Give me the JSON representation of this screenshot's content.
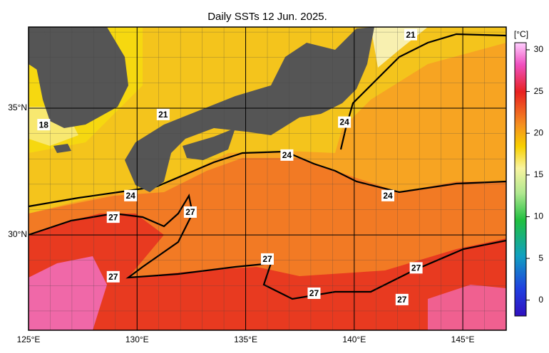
{
  "map": {
    "title": "Daily SSTs 12 Jun. 2025.",
    "lonlim": [
      125,
      147
    ],
    "latlim": [
      26.24,
      38.2
    ],
    "lon_ticks": [
      {
        "value": 125,
        "label": "125°E"
      },
      {
        "value": 130,
        "label": "130°E"
      },
      {
        "value": 135,
        "label": "135°E"
      },
      {
        "value": 140,
        "label": "140°E"
      },
      {
        "value": 145,
        "label": "145°E"
      }
    ],
    "lat_ticks": [
      {
        "value": 30,
        "label": "30°N"
      },
      {
        "value": 35,
        "label": "35°N"
      }
    ],
    "grid_step": 1,
    "contour_labels": [
      {
        "label": "21",
        "lon": 142.6,
        "lat": 37.9
      },
      {
        "label": "18",
        "lon": 125.7,
        "lat": 34.35
      },
      {
        "label": "21",
        "lon": 131.2,
        "lat": 34.75
      },
      {
        "label": "24",
        "lon": 139.55,
        "lat": 34.45
      },
      {
        "label": "24",
        "lon": 136.9,
        "lat": 33.15
      },
      {
        "label": "24",
        "lon": 141.55,
        "lat": 31.55
      },
      {
        "label": "24",
        "lon": 129.7,
        "lat": 31.55
      },
      {
        "label": "27",
        "lon": 132.45,
        "lat": 30.9
      },
      {
        "label": "27",
        "lon": 128.9,
        "lat": 30.7
      },
      {
        "label": "27",
        "lon": 136.0,
        "lat": 29.05
      },
      {
        "label": "27",
        "lon": 142.85,
        "lat": 28.7
      },
      {
        "label": "27",
        "lon": 128.9,
        "lat": 28.35
      },
      {
        "label": "27",
        "lon": 138.15,
        "lat": 27.7
      },
      {
        "label": "27",
        "lon": 142.2,
        "lat": 27.45
      }
    ],
    "colorbar": {
      "label": "[°C]",
      "lim": [
        -1.9,
        30.85
      ],
      "ticks": [
        0,
        5,
        10,
        15,
        20,
        25,
        30
      ]
    }
  }
}
